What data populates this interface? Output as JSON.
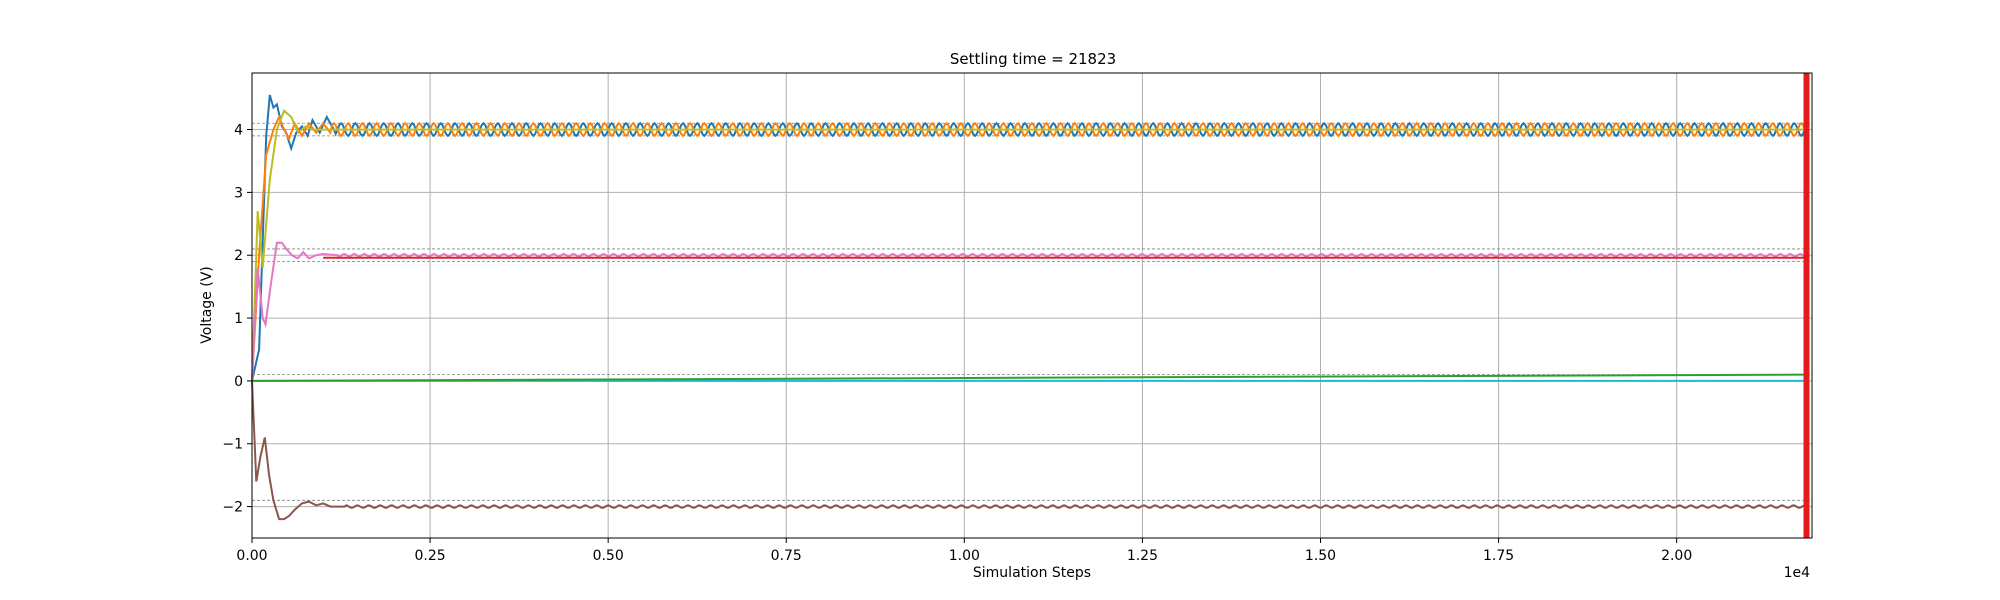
{
  "chart_data": {
    "type": "line",
    "title": "Settling time = 21823",
    "xlabel": "Simulation Steps",
    "ylabel": "Voltage (V)",
    "x_scale_label": "1e4",
    "xlim": [
      0,
      21900
    ],
    "ylim": [
      -2.5,
      4.9
    ],
    "grid": true,
    "x_ticks": [
      0,
      2500,
      5000,
      7500,
      10000,
      12500,
      15000,
      17500,
      20000
    ],
    "x_tick_labels": [
      "0.00",
      "0.25",
      "0.50",
      "0.75",
      "1.00",
      "1.25",
      "1.50",
      "1.75",
      "2.00"
    ],
    "y_ticks": [
      -2,
      -1,
      0,
      1,
      2,
      3,
      4
    ],
    "y_tick_labels": [
      "−2",
      "−1",
      "0",
      "1",
      "2",
      "3",
      "4"
    ],
    "settling_marker_x": 21823,
    "colors": {
      "settling_marker": "#e41a1c",
      "grid": "#b0b0b0",
      "tolerance_band": "#808080"
    },
    "tolerance_lines": [
      4.1,
      3.9,
      2.1,
      1.9,
      0.1,
      -1.9
    ],
    "series": [
      {
        "color": "#1f77b4",
        "target": 4.0,
        "start": 0.0,
        "kind": "oscillating",
        "points": [
          [
            0,
            0
          ],
          [
            100,
            0.5
          ],
          [
            200,
            3.9
          ],
          [
            250,
            4.55
          ],
          [
            300,
            4.35
          ],
          [
            350,
            4.4
          ],
          [
            420,
            4.05
          ],
          [
            480,
            3.95
          ],
          [
            550,
            3.7
          ],
          [
            620,
            3.95
          ],
          [
            700,
            4.05
          ],
          [
            780,
            3.9
          ],
          [
            850,
            4.15
          ],
          [
            950,
            3.95
          ],
          [
            1050,
            4.2
          ],
          [
            1150,
            4.0
          ]
        ],
        "steady_amplitude": 0.1,
        "period_steps": 200,
        "phase": 0.0
      },
      {
        "color": "#ff7f0e",
        "target": 4.0,
        "start": 0.0,
        "kind": "oscillating",
        "points": [
          [
            0,
            0
          ],
          [
            100,
            2.0
          ],
          [
            200,
            3.6
          ],
          [
            300,
            4.0
          ],
          [
            380,
            4.2
          ],
          [
            450,
            4.0
          ],
          [
            520,
            3.85
          ],
          [
            600,
            4.1
          ],
          [
            700,
            3.9
          ],
          [
            800,
            4.1
          ],
          [
            900,
            3.95
          ],
          [
            1000,
            4.1
          ],
          [
            1100,
            3.95
          ]
        ],
        "steady_amplitude": 0.1,
        "period_steps": 200,
        "phase": 3.14159
      },
      {
        "color": "#bcbd22",
        "target": 4.0,
        "start": 0.0,
        "kind": "settled",
        "points": [
          [
            0,
            0
          ],
          [
            80,
            2.7
          ],
          [
            150,
            1.8
          ],
          [
            250,
            3.2
          ],
          [
            350,
            4.0
          ],
          [
            450,
            4.3
          ],
          [
            550,
            4.2
          ],
          [
            650,
            3.95
          ],
          [
            750,
            4.05
          ],
          [
            850,
            4.0
          ]
        ]
      },
      {
        "color": "#e377c2",
        "target": 2.0,
        "start": 0.0,
        "kind": "settled",
        "points": [
          [
            0,
            0
          ],
          [
            80,
            1.8
          ],
          [
            150,
            1.0
          ],
          [
            190,
            0.9
          ],
          [
            260,
            1.5
          ],
          [
            350,
            2.2
          ],
          [
            420,
            2.2
          ],
          [
            480,
            2.1
          ],
          [
            560,
            2.0
          ],
          [
            640,
            1.95
          ],
          [
            720,
            2.05
          ],
          [
            800,
            1.95
          ],
          [
            900,
            2.0
          ],
          [
            1000,
            2.02
          ],
          [
            1200,
            2.0
          ]
        ],
        "steady_amplitude": 0.02,
        "period_steps": 140
      },
      {
        "color": "#d62728",
        "target": 1.96,
        "start": 1.96,
        "kind": "flat",
        "points": [
          [
            1000,
            1.96
          ],
          [
            21800,
            1.96
          ]
        ]
      },
      {
        "color": "#17becf",
        "target": 0.0,
        "start": 0.0,
        "kind": "flat",
        "points": [
          [
            0,
            0
          ],
          [
            21800,
            0
          ]
        ]
      },
      {
        "color": "#2ca02c",
        "target": 0.0,
        "start": 0.0,
        "kind": "drift",
        "points": [
          [
            0,
            0
          ],
          [
            21800,
            0.1
          ]
        ]
      },
      {
        "color": "#8c564b",
        "target": -2.0,
        "start": 0.0,
        "kind": "settled",
        "points": [
          [
            0,
            0
          ],
          [
            60,
            -1.6
          ],
          [
            120,
            -1.2
          ],
          [
            180,
            -0.9
          ],
          [
            240,
            -1.5
          ],
          [
            300,
            -1.9
          ],
          [
            380,
            -2.2
          ],
          [
            450,
            -2.2
          ],
          [
            520,
            -2.15
          ],
          [
            600,
            -2.05
          ],
          [
            700,
            -1.95
          ],
          [
            800,
            -1.92
          ],
          [
            900,
            -1.98
          ],
          [
            1000,
            -1.95
          ],
          [
            1100,
            -2.0
          ],
          [
            1300,
            -2.0
          ]
        ],
        "steady_amplitude": 0.02,
        "period_steps": 160
      }
    ]
  }
}
